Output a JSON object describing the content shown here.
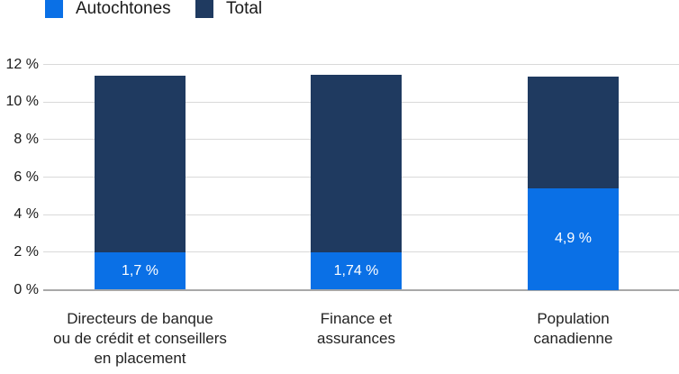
{
  "legend": {
    "items": [
      {
        "label": "Autochtones",
        "color": "#0A70E6"
      },
      {
        "label": "Total",
        "color": "#1F3A60"
      }
    ]
  },
  "chart_data": {
    "type": "stacked-bar",
    "title": "",
    "categories": [
      {
        "lines": [
          "Directeurs de banque",
          "ou de crédit et conseillers",
          "en placement"
        ]
      },
      {
        "lines": [
          "Finance et",
          "assurances"
        ]
      },
      {
        "lines": [
          "Population",
          "canadienne"
        ]
      }
    ],
    "series": [
      {
        "name": "Autochtones",
        "color": "#0A70E6",
        "values": [
          1.7,
          1.74,
          4.9
        ],
        "value_labels": [
          "1,7 %",
          "1,74 %",
          "4,9 %"
        ]
      },
      {
        "name": "Total",
        "color": "#1F3A60",
        "values": [
          11.4,
          11.45,
          11.35
        ],
        "value_labels": [
          "",
          "",
          ""
        ]
      }
    ],
    "y_axis": {
      "min": 0,
      "max": 12,
      "ticks": [
        {
          "value": 12,
          "label": "12 %"
        },
        {
          "value": 10,
          "label": "10 %"
        },
        {
          "value": 8,
          "label": "8 %"
        },
        {
          "value": 6,
          "label": "6 %"
        },
        {
          "value": 4,
          "label": "4 %"
        },
        {
          "value": 2,
          "label": "2 %"
        },
        {
          "value": 0,
          "label": "0 %"
        }
      ]
    },
    "grid": true,
    "legend_position": "top-left",
    "render_hints": {
      "autochtones_drawn_pct": [
        2.0,
        2.0,
        5.4
      ]
    }
  },
  "colors": {
    "background": "#FFFFFF",
    "gridline": "#D9D9D9",
    "axis_line": "#A8A8A8",
    "text": "#1A1A1A",
    "bar_value_text": "#FFFFFF"
  }
}
